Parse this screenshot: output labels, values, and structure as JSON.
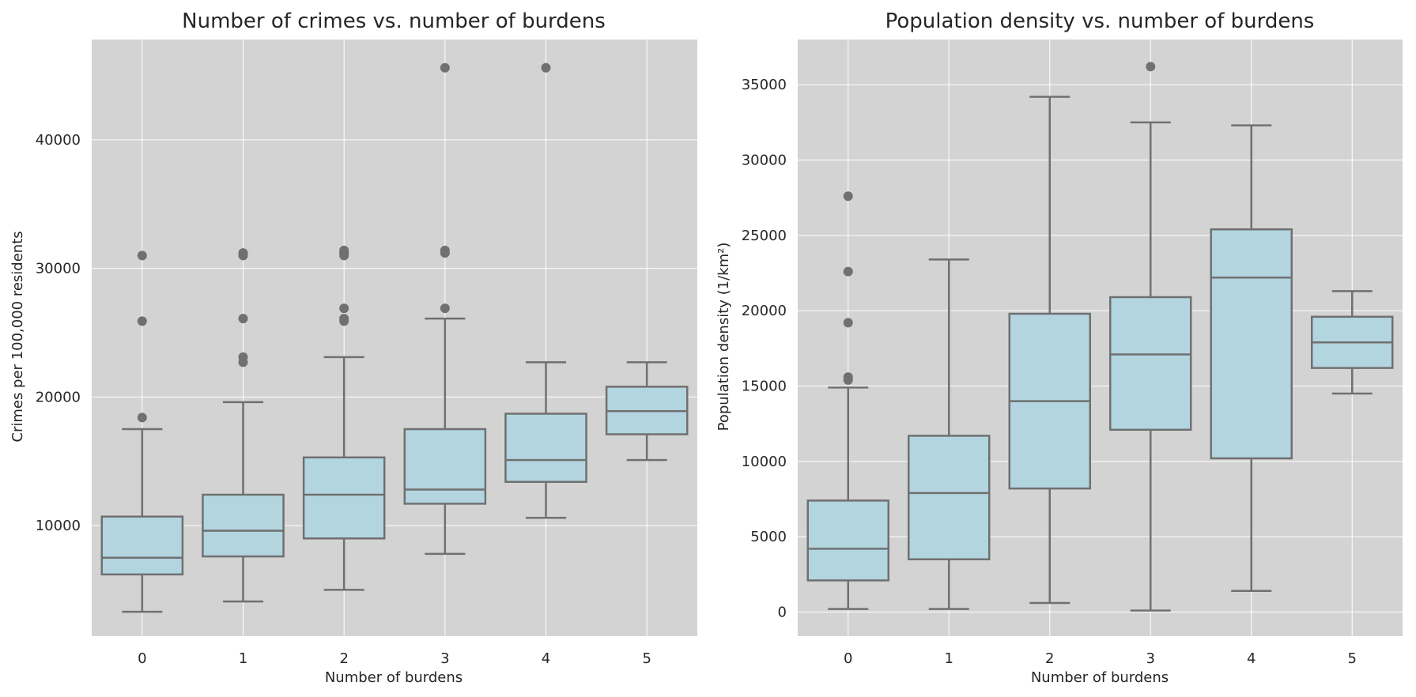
{
  "style": {
    "plot_background": "#d3d3d3",
    "grid_color": "#ffffff",
    "box_fill": "#b2d5e0",
    "box_line": "#707070",
    "outlier_color": "#707070"
  },
  "chart_data": [
    {
      "type": "box",
      "title": "Number of crimes vs. number of burdens",
      "xlabel": "Number of burdens",
      "ylabel": "Crimes per 100,000 residents",
      "categories": [
        "0",
        "1",
        "2",
        "3",
        "4",
        "5"
      ],
      "ylim": [
        1400,
        47800
      ],
      "yticks": [
        10000,
        20000,
        30000,
        40000
      ],
      "grid": true,
      "boxes": [
        {
          "whislo": 3300,
          "q1": 6200,
          "med": 7500,
          "q3": 10700,
          "whishi": 17500,
          "fliers": [
            18400,
            25900,
            31000
          ]
        },
        {
          "whislo": 4100,
          "q1": 7600,
          "med": 9600,
          "q3": 12400,
          "whishi": 19600,
          "fliers": [
            22700,
            23100,
            26100,
            31000,
            31200
          ]
        },
        {
          "whislo": 5000,
          "q1": 9000,
          "med": 12400,
          "q3": 15300,
          "whishi": 23100,
          "fliers": [
            25900,
            26100,
            26900,
            31000,
            31200,
            31400
          ]
        },
        {
          "whislo": 7800,
          "q1": 11700,
          "med": 12800,
          "q3": 17500,
          "whishi": 26100,
          "fliers": [
            26900,
            31200,
            31400,
            45600
          ]
        },
        {
          "whislo": 10600,
          "q1": 13400,
          "med": 15100,
          "q3": 18700,
          "whishi": 22700,
          "fliers": [
            45600
          ]
        },
        {
          "whislo": 15100,
          "q1": 17100,
          "med": 18900,
          "q3": 20800,
          "whishi": 22700,
          "fliers": []
        }
      ]
    },
    {
      "type": "box",
      "title": "Population density vs. number of burdens",
      "xlabel": "Number of burdens",
      "ylabel": "Population density (1/km²)",
      "categories": [
        "0",
        "1",
        "2",
        "3",
        "4",
        "5"
      ],
      "ylim": [
        -1600,
        38000
      ],
      "yticks": [
        0,
        5000,
        10000,
        15000,
        20000,
        25000,
        30000,
        35000
      ],
      "grid": true,
      "boxes": [
        {
          "whislo": 200,
          "q1": 2100,
          "med": 4200,
          "q3": 7400,
          "whishi": 14900,
          "fliers": [
            15400,
            15600,
            19200,
            22600,
            27600
          ]
        },
        {
          "whislo": 200,
          "q1": 3500,
          "med": 7900,
          "q3": 11700,
          "whishi": 23400,
          "fliers": []
        },
        {
          "whislo": 600,
          "q1": 8200,
          "med": 14000,
          "q3": 19800,
          "whishi": 34200,
          "fliers": []
        },
        {
          "whislo": 100,
          "q1": 12100,
          "med": 17100,
          "q3": 20900,
          "whishi": 32500,
          "fliers": [
            36200
          ]
        },
        {
          "whislo": 1400,
          "q1": 10200,
          "med": 22200,
          "q3": 25400,
          "whishi": 32300,
          "fliers": []
        },
        {
          "whislo": 14500,
          "q1": 16200,
          "med": 17900,
          "q3": 19600,
          "whishi": 21300,
          "fliers": []
        }
      ]
    }
  ]
}
